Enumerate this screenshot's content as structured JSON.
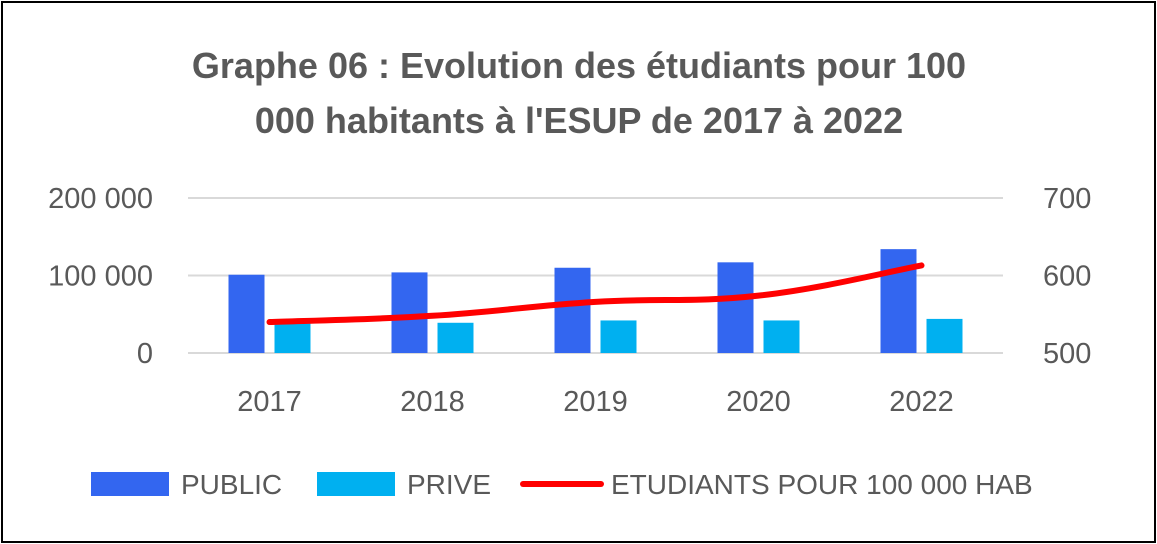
{
  "chart_data": {
    "type": "bar",
    "title": "Graphe 06 : Evolution des étudiants pour 100 000 habitants à l'ESUP de 2017 à 2022",
    "title_lines": [
      "Graphe 06 : Evolution des étudiants pour 100",
      "000 habitants à l'ESUP de 2017 à 2022"
    ],
    "categories": [
      "2017",
      "2018",
      "2019",
      "2020",
      "2022"
    ],
    "series": [
      {
        "name": "PUBLIC",
        "type": "bar",
        "axis": "left",
        "color": "#3366f0",
        "values": [
          101000,
          104000,
          110000,
          117000,
          134000
        ]
      },
      {
        "name": "PRIVE",
        "type": "bar",
        "axis": "left",
        "color": "#00b0f0",
        "values": [
          38000,
          39000,
          42000,
          42000,
          44000
        ]
      },
      {
        "name": "ETUDIANTS POUR 100 000 HAB",
        "type": "line",
        "axis": "right",
        "color": "#ff0000",
        "values": [
          540,
          548,
          566,
          574,
          613
        ]
      }
    ],
    "y_left": {
      "ylim": [
        0,
        200000
      ],
      "ticks": [
        0,
        100000,
        200000
      ],
      "tick_labels": [
        "0",
        "100 000",
        "200 000"
      ]
    },
    "y_right": {
      "ylim": [
        500,
        700
      ],
      "ticks": [
        500,
        600,
        700
      ],
      "tick_labels": [
        "500",
        "600",
        "700"
      ]
    },
    "grid": true,
    "legend_position": "bottom"
  }
}
